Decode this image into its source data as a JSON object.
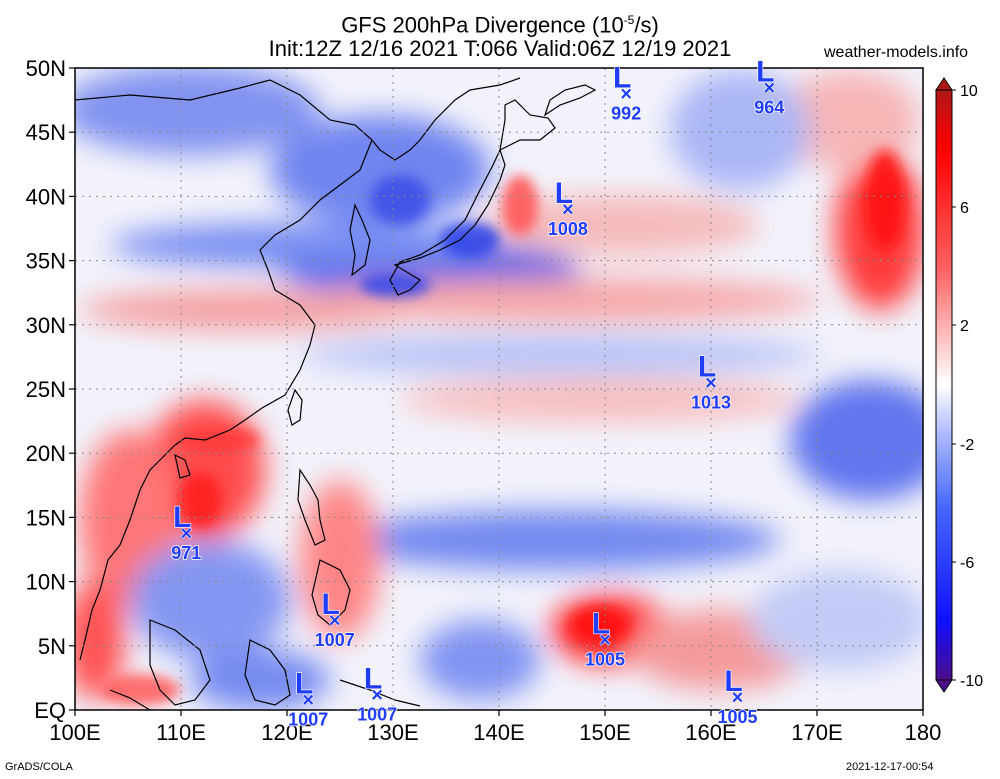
{
  "header": {
    "title": "GFS 200hPa Divergence (10",
    "title_exp": "-5",
    "title_unit": "/s)",
    "subtitle": "Init:12Z 12/16 2021 T:066 Valid:06Z 12/19 2021",
    "site": "weather-models.info"
  },
  "axes": {
    "x_ticks": [
      "100E",
      "110E",
      "120E",
      "130E",
      "140E",
      "150E",
      "160E",
      "170E",
      "180"
    ],
    "y_ticks": [
      "EQ",
      "5N",
      "10N",
      "15N",
      "20N",
      "25N",
      "30N",
      "35N",
      "40N",
      "45N",
      "50N"
    ]
  },
  "colorbar": {
    "labels": [
      "10",
      "6",
      "2",
      "-2",
      "-6",
      "-10"
    ],
    "colors": [
      "#4b0c8a",
      "#0000ff",
      "#5a78ff",
      "#c8d2ff",
      "#ffffff",
      "#ffc8c8",
      "#ff6464",
      "#ff0000",
      "#b41e1e"
    ]
  },
  "lows": [
    {
      "lon": 152.0,
      "lat": 48.0,
      "pressure": "992"
    },
    {
      "lon": 165.5,
      "lat": 48.5,
      "pressure": "964"
    },
    {
      "lon": 146.5,
      "lat": 39.0,
      "pressure": "1008"
    },
    {
      "lon": 160.0,
      "lat": 25.5,
      "pressure": "1013"
    },
    {
      "lon": 110.5,
      "lat": 13.8,
      "pressure": "971"
    },
    {
      "lon": 124.5,
      "lat": 7.0,
      "pressure": "1007"
    },
    {
      "lon": 150.0,
      "lat": 5.5,
      "pressure": "1005"
    },
    {
      "lon": 122.0,
      "lat": 0.8,
      "pressure": "1007"
    },
    {
      "lon": 128.5,
      "lat": 1.2,
      "pressure": "1007"
    },
    {
      "lon": 162.5,
      "lat": 1.0,
      "pressure": "1005"
    }
  ],
  "footer": {
    "left": "GrADS/COLA",
    "right": "2021-12-17-00:54"
  }
}
